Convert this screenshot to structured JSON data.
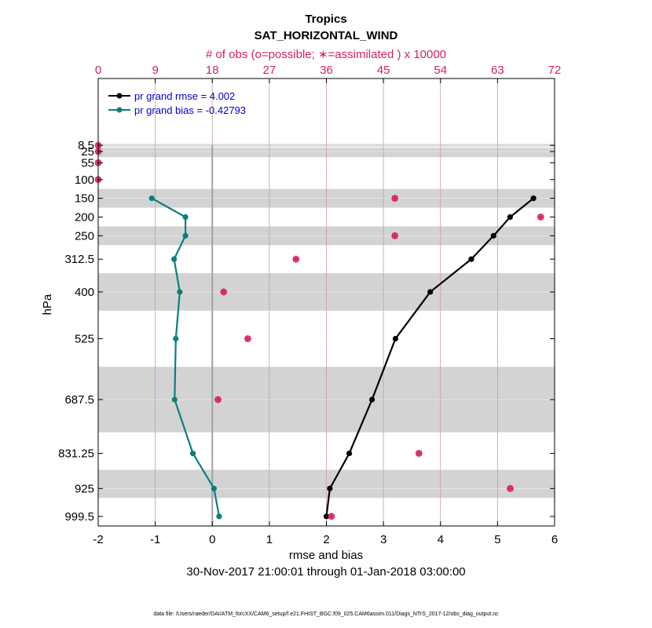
{
  "chart_data": {
    "type": "line",
    "title": "Tropics",
    "subtitle": "SAT_HORIZONTAL_WIND",
    "xlabel": "rmse and bias",
    "ylabel": "hPa",
    "date_range": "30-Nov-2017 21:00:01 through 01-Jan-2018 03:00:00",
    "footer": "data file: /Users/raeder/DAI/ATM_forcXX/CAM6_setup/f.e21.FHIST_BGC.f09_025.CAM6assim.011/Diags_NTrS_2017-12/obs_diag_output.nc",
    "top_axis_label": "# of obs (o=possible; ∗=assimilated ) x 10000",
    "xlim": [
      -2,
      6
    ],
    "xticks": [
      "-2",
      "-1",
      "0",
      "1",
      "2",
      "3",
      "4",
      "5",
      "6"
    ],
    "top_xlim": [
      0,
      72
    ],
    "top_xticks": [
      "0",
      "9",
      "18",
      "27",
      "36",
      "45",
      "54",
      "63",
      "72"
    ],
    "ylim": [
      1025,
      -170
    ],
    "ylevels": [
      8.5,
      25,
      55,
      100,
      150,
      200,
      250,
      312.5,
      400,
      525,
      687.5,
      831.25,
      925,
      999.5
    ],
    "ylevel_labels": [
      "8.5",
      "25",
      "55",
      "100",
      "150",
      "200",
      "250",
      "312.5",
      "400",
      "525",
      "687.5",
      "831.25",
      "925",
      "999.5"
    ],
    "shaded_layers": [
      [
        5,
        12
      ],
      [
        15,
        40
      ],
      [
        125,
        175
      ],
      [
        225,
        275
      ],
      [
        350,
        450
      ],
      [
        600,
        775
      ],
      [
        875,
        950
      ]
    ],
    "grid": "vertical",
    "legend_position": "top-left",
    "series": [
      {
        "name": "pr grand rmse = 4.002",
        "color": "#000000",
        "levels": [
          150,
          200,
          250,
          312.5,
          400,
          525,
          687.5,
          831.25,
          925,
          999.5
        ],
        "values": [
          5.63,
          5.22,
          4.93,
          4.54,
          3.82,
          3.21,
          2.8,
          2.4,
          2.06,
          2.0
        ]
      },
      {
        "name": "pr grand bias = -0.42793",
        "color": "#0a7f7f",
        "levels": [
          150,
          200,
          250,
          312.5,
          400,
          525,
          687.5,
          831.25,
          925,
          999.5
        ],
        "values": [
          -1.06,
          -0.47,
          -0.47,
          -0.67,
          -0.57,
          -0.64,
          -0.66,
          -0.34,
          0.03,
          0.12
        ]
      }
    ],
    "obs_counts": {
      "color": "#d6215f",
      "levels": [
        8.5,
        25,
        55,
        100,
        150,
        200,
        250,
        312.5,
        400,
        525,
        687.5,
        831.25,
        925,
        999.5
      ],
      "possible": [
        0,
        0,
        0,
        0,
        46.8,
        69.8,
        46.8,
        31.2,
        19.8,
        23.6,
        18.9,
        50.6,
        65.0,
        36.8
      ],
      "assimilated": [
        0,
        0,
        0,
        0,
        46.8,
        69.8,
        46.8,
        31.2,
        19.8,
        23.6,
        18.9,
        50.6,
        65.0,
        36.8
      ]
    }
  }
}
